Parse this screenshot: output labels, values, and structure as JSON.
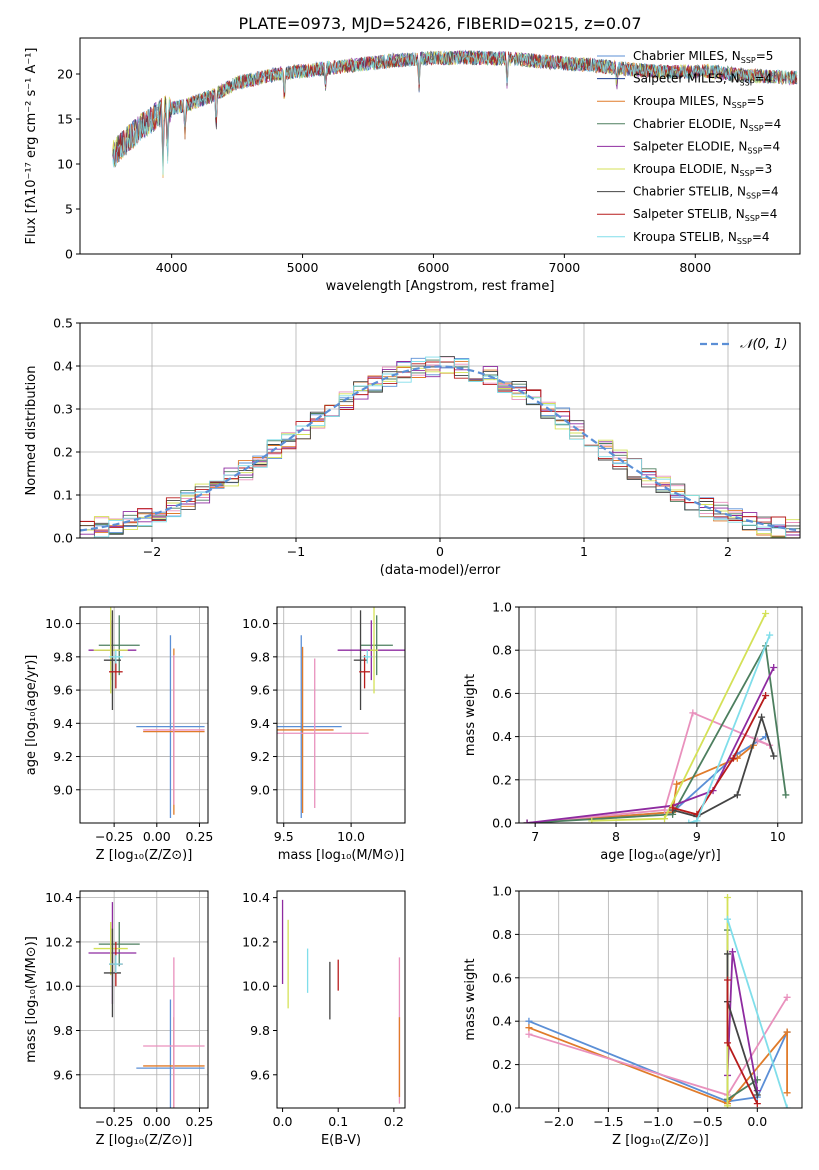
{
  "figure_title": "PLATE=0973, MJD=52426, FIBERID=0215, z=0.07",
  "chart_data": [
    {
      "id": "spectrum",
      "type": "line",
      "xlabel": "wavelength [Angstrom, rest frame]",
      "ylabel": "Flux [fλ10⁻¹⁷ erg cm⁻² s⁻¹ A⁻¹]",
      "xlim": [
        3300,
        8800
      ],
      "ylim": [
        0,
        24
      ],
      "xticks": [
        4000,
        5000,
        6000,
        7000,
        8000
      ],
      "yticks": [
        0,
        5,
        10,
        15,
        20
      ],
      "grid": false,
      "legend_position": "top-right",
      "series": [
        {
          "name": "Chabrier MILES, N_SSP=5",
          "color": "#5b8fd6"
        },
        {
          "name": "Salpeter MILES, N_SSP=4",
          "color": "#1f3f8f"
        },
        {
          "name": "Kroupa MILES, N_SSP=5",
          "color": "#e07b2a"
        },
        {
          "name": "Chabrier ELODIE, N_SSP=4",
          "color": "#4d7f5f"
        },
        {
          "name": "Salpeter ELODIE, N_SSP=4",
          "color": "#8e2ba0"
        },
        {
          "name": "Kroupa ELODIE, N_SSP=3",
          "color": "#d4e157"
        },
        {
          "name": "Chabrier STELIB, N_SSP=4",
          "color": "#444444"
        },
        {
          "name": "Salpeter STELIB, N_SSP=4",
          "color": "#b71c1c"
        },
        {
          "name": "Kroupa STELIB, N_SSP=4",
          "color": "#80deea"
        }
      ],
      "continuum": {
        "x": [
          3550,
          3650,
          3800,
          3950,
          4100,
          4300,
          4500,
          4800,
          5100,
          5400,
          5700,
          6000,
          6300,
          6600,
          6900,
          7200,
          7500,
          7800,
          8100,
          8400,
          8750
        ],
        "y": [
          11,
          12.5,
          14.5,
          16,
          16.5,
          17.5,
          19,
          20,
          20.5,
          21,
          21.5,
          21.8,
          21.8,
          21.7,
          21.3,
          21,
          20.5,
          20.2,
          20.3,
          19.8,
          19.6
        ]
      }
    },
    {
      "id": "residual-histogram",
      "type": "bar",
      "xlabel": "(data-model)/error",
      "ylabel": "Normed distribution",
      "xlim": [
        -2.5,
        2.5
      ],
      "ylim": [
        0,
        0.5
      ],
      "xticks": [
        -2,
        -1,
        0,
        1,
        2
      ],
      "yticks": [
        0.0,
        0.1,
        0.2,
        0.3,
        0.4,
        0.5
      ],
      "grid": true,
      "legend": "𝒩(0, 1)",
      "legend_position": "top-right",
      "reference_curve": "gaussian mean 0 sigma 1",
      "reference_color": "#5b8fd6"
    },
    {
      "id": "age-vs-Z",
      "type": "scatter",
      "xlabel": "Z [log₁₀(Z/Z⊙)]",
      "ylabel": "age  [log₁₀(age/yr)]",
      "xlim": [
        -0.45,
        0.3
      ],
      "ylim": [
        8.8,
        10.1
      ],
      "xticks": [
        -0.25,
        0.0,
        0.25
      ],
      "xticklabels": [
        "−0.25",
        "0.00",
        "0.25"
      ],
      "yticks": [
        9.0,
        9.2,
        9.4,
        9.6,
        9.8,
        10.0
      ],
      "grid": true,
      "points": [
        {
          "x": 0.08,
          "xerr": 0.2,
          "y": 9.38,
          "yerr": 0.55,
          "color": "#5b8fd6"
        },
        {
          "x": 0.1,
          "xerr": 0.18,
          "y": 9.35,
          "yerr": 0.5,
          "color": "#e07b2a"
        },
        {
          "x": 0.1,
          "xerr": 0.18,
          "y": 9.36,
          "yerr": 0.45,
          "color": "#e991bd"
        },
        {
          "x": -0.22,
          "xerr": 0.12,
          "y": 9.87,
          "yerr": 0.18,
          "color": "#4d7f5f"
        },
        {
          "x": -0.26,
          "xerr": 0.14,
          "y": 9.84,
          "yerr": 0.18,
          "color": "#8e2ba0"
        },
        {
          "x": -0.27,
          "xerr": 0.1,
          "y": 9.84,
          "yerr": 0.26,
          "color": "#d4e157"
        },
        {
          "x": -0.26,
          "xerr": 0.05,
          "y": 9.78,
          "yerr": 0.3,
          "color": "#444444"
        },
        {
          "x": -0.24,
          "xerr": 0.04,
          "y": 9.71,
          "yerr": 0.1,
          "color": "#b71c1c"
        },
        {
          "x": -0.24,
          "xerr": 0.04,
          "y": 9.8,
          "yerr": 0.04,
          "color": "#80deea"
        }
      ]
    },
    {
      "id": "age-vs-mass",
      "type": "scatter",
      "xlabel": "mass [log₁₀(M/M⊙)]",
      "xlim": [
        9.45,
        10.4
      ],
      "ylim": [
        8.8,
        10.1
      ],
      "xticks": [
        9.5,
        10.0
      ],
      "xticklabels": [
        "9.5",
        "10.0"
      ],
      "yticks": [
        9.0,
        9.2,
        9.4,
        9.6,
        9.8,
        10.0
      ],
      "grid": true,
      "points": [
        {
          "x": 9.63,
          "xerr": 0.3,
          "y": 9.38,
          "yerr": 0.55,
          "color": "#5b8fd6"
        },
        {
          "x": 9.64,
          "xerr": 0.23,
          "y": 9.36,
          "yerr": 0.5,
          "color": "#e07b2a"
        },
        {
          "x": 9.73,
          "xerr": 0.4,
          "y": 9.34,
          "yerr": 0.45,
          "color": "#e991bd"
        },
        {
          "x": 10.19,
          "xerr": 0.12,
          "y": 9.87,
          "yerr": 0.18,
          "color": "#4d7f5f"
        },
        {
          "x": 10.15,
          "xerr": 0.25,
          "y": 9.84,
          "yerr": 0.18,
          "color": "#8e2ba0"
        },
        {
          "x": 10.17,
          "xerr": 0.03,
          "y": 9.84,
          "yerr": 0.26,
          "color": "#d4e157"
        },
        {
          "x": 10.07,
          "xerr": 0.05,
          "y": 9.78,
          "yerr": 0.3,
          "color": "#444444"
        },
        {
          "x": 10.1,
          "xerr": 0.04,
          "y": 9.71,
          "yerr": 0.1,
          "color": "#b71c1c"
        },
        {
          "x": 10.12,
          "xerr": 0.03,
          "y": 9.8,
          "yerr": 0.04,
          "color": "#80deea"
        }
      ]
    },
    {
      "id": "massweight-vs-age",
      "type": "line",
      "xlabel": "age  [log₁₀(age/yr)]",
      "ylabel": "mass weight",
      "xlim": [
        6.8,
        10.3
      ],
      "ylim": [
        0,
        1
      ],
      "xticks": [
        7,
        8,
        9,
        10
      ],
      "yticks": [
        0.0,
        0.2,
        0.4,
        0.6,
        0.8,
        1.0
      ],
      "grid": true,
      "series": [
        {
          "color": "#5b8fd6",
          "x": [
            6.9,
            8.7,
            9.5,
            9.85
          ],
          "y": [
            0.0,
            0.05,
            0.32,
            0.4
          ]
        },
        {
          "color": "#e07b2a",
          "x": [
            6.9,
            8.7,
            8.75,
            9.5,
            9.7
          ],
          "y": [
            0.0,
            0.05,
            0.18,
            0.3,
            0.36
          ]
        },
        {
          "color": "#e991bd",
          "x": [
            6.9,
            8.6,
            8.95,
            9.9,
            9.75
          ],
          "y": [
            0.0,
            0.06,
            0.51,
            0.36,
            0.38
          ]
        },
        {
          "color": "#4d7f5f",
          "x": [
            6.9,
            8.7,
            9.85,
            10.1
          ],
          "y": [
            0.0,
            0.04,
            0.82,
            0.13
          ]
        },
        {
          "color": "#8e2ba0",
          "x": [
            6.9,
            8.7,
            9.2,
            9.95
          ],
          "y": [
            0.0,
            0.08,
            0.15,
            0.72
          ]
        },
        {
          "color": "#d4e157",
          "x": [
            7.7,
            8.6,
            9.85
          ],
          "y": [
            0.01,
            0.02,
            0.97
          ]
        },
        {
          "color": "#444444",
          "x": [
            8.7,
            9.0,
            9.5,
            9.8,
            9.95
          ],
          "y": [
            0.06,
            0.03,
            0.13,
            0.49,
            0.31
          ]
        },
        {
          "color": "#b71c1c",
          "x": [
            8.7,
            9.0,
            9.45,
            9.85
          ],
          "y": [
            0.07,
            0.04,
            0.3,
            0.59
          ]
        },
        {
          "color": "#80deea",
          "x": [
            8.9,
            9.0,
            9.9
          ],
          "y": [
            0.0,
            0.01,
            0.87
          ]
        }
      ]
    },
    {
      "id": "mass-vs-Z",
      "type": "scatter",
      "xlabel": "Z [log₁₀(Z/Z⊙)]",
      "ylabel": "mass [log₁₀(M/M⊙)]",
      "xlim": [
        -0.45,
        0.3
      ],
      "ylim": [
        9.45,
        10.43
      ],
      "xticks": [
        -0.25,
        0.0,
        0.25
      ],
      "xticklabels": [
        "−0.25",
        "0.00",
        "0.25"
      ],
      "yticks": [
        9.6,
        9.8,
        10.0,
        10.2,
        10.4
      ],
      "grid": true,
      "points": [
        {
          "x": 0.08,
          "xerr": 0.2,
          "y": 9.63,
          "yerr": 0.31,
          "color": "#5b8fd6"
        },
        {
          "x": 0.1,
          "xerr": 0.18,
          "y": 9.64,
          "yerr": 0.22,
          "color": "#e07b2a"
        },
        {
          "x": 0.1,
          "xerr": 0.18,
          "y": 9.73,
          "yerr": 0.4,
          "color": "#e991bd"
        },
        {
          "x": -0.22,
          "xerr": 0.12,
          "y": 10.19,
          "yerr": 0.1,
          "color": "#4d7f5f"
        },
        {
          "x": -0.26,
          "xerr": 0.14,
          "y": 10.15,
          "yerr": 0.23,
          "color": "#8e2ba0"
        },
        {
          "x": -0.27,
          "xerr": 0.1,
          "y": 10.17,
          "yerr": 0.12,
          "color": "#d4e157"
        },
        {
          "x": -0.26,
          "xerr": 0.05,
          "y": 10.06,
          "yerr": 0.2,
          "color": "#444444"
        },
        {
          "x": -0.24,
          "xerr": 0.04,
          "y": 10.1,
          "yerr": 0.1,
          "color": "#b71c1c"
        },
        {
          "x": -0.24,
          "xerr": 0.04,
          "y": 10.1,
          "yerr": 0.04,
          "color": "#80deea"
        }
      ]
    },
    {
      "id": "mass-vs-EBV",
      "type": "scatter",
      "xlabel": "E(B-V)",
      "xlim": [
        -0.01,
        0.22
      ],
      "ylim": [
        9.45,
        10.43
      ],
      "xticks": [
        0.0,
        0.1,
        0.2
      ],
      "xticklabels": [
        "0.0",
        "0.1",
        "0.2"
      ],
      "yticks": [
        9.6,
        9.8,
        10.0,
        10.2,
        10.4
      ],
      "grid": false,
      "points": [
        {
          "x": 0.0,
          "y": 10.2,
          "yerr": 0.19,
          "color": "#8e2ba0"
        },
        {
          "x": 0.01,
          "y": 10.1,
          "yerr": 0.2,
          "color": "#d4e157"
        },
        {
          "x": 0.045,
          "y": 10.07,
          "yerr": 0.1,
          "color": "#80deea"
        },
        {
          "x": 0.085,
          "y": 9.98,
          "yerr": 0.13,
          "color": "#444444"
        },
        {
          "x": 0.1,
          "y": 10.05,
          "yerr": 0.07,
          "color": "#b71c1c"
        },
        {
          "x": 0.21,
          "y": 9.8,
          "yerr": 0.33,
          "color": "#e991bd"
        },
        {
          "x": 0.21,
          "y": 9.68,
          "yerr": 0.18,
          "color": "#e07b2a"
        }
      ]
    },
    {
      "id": "massweight-vs-Z",
      "type": "line",
      "xlabel": "Z [log₁₀(Z/Z⊙)]",
      "ylabel": "mass weight",
      "xlim": [
        -2.4,
        0.45
      ],
      "ylim": [
        0,
        1
      ],
      "xticks": [
        -2.0,
        -1.5,
        -1.0,
        -0.5,
        0.0
      ],
      "xticklabels": [
        "−2.0",
        "−1.5",
        "−1.0",
        "−0.5",
        "0.0"
      ],
      "yticks": [
        0.0,
        0.2,
        0.4,
        0.6,
        0.8,
        1.0
      ],
      "grid": true,
      "series": [
        {
          "color": "#5b8fd6",
          "x": [
            -2.3,
            -0.3,
            0.0,
            0.3
          ],
          "y": [
            0.4,
            0.03,
            0.05,
            0.35
          ]
        },
        {
          "color": "#e07b2a",
          "x": [
            -2.3,
            -0.3,
            0.3,
            0.3
          ],
          "y": [
            0.37,
            0.02,
            0.35,
            0.07
          ]
        },
        {
          "color": "#e991bd",
          "x": [
            -2.3,
            -0.3,
            0.3
          ],
          "y": [
            0.34,
            0.06,
            0.51
          ]
        },
        {
          "color": "#4d7f5f",
          "x": [
            -0.3,
            -0.3,
            0.0
          ],
          "y": [
            0.82,
            0.04,
            0.13
          ]
        },
        {
          "color": "#8e2ba0",
          "x": [
            -0.3,
            -0.25,
            0.0
          ],
          "y": [
            0.15,
            0.72,
            0.08
          ]
        },
        {
          "color": "#d4e157",
          "x": [
            -0.3,
            -0.3
          ],
          "y": [
            0.97,
            0.01
          ]
        },
        {
          "color": "#444444",
          "x": [
            -0.3,
            -0.3,
            0.0
          ],
          "y": [
            0.71,
            0.49,
            0.06
          ]
        },
        {
          "color": "#b71c1c",
          "x": [
            -0.3,
            -0.3,
            0.0
          ],
          "y": [
            0.59,
            0.3,
            0.02
          ]
        },
        {
          "color": "#80deea",
          "x": [
            -0.3,
            0.3
          ],
          "y": [
            0.87,
            0.0
          ]
        }
      ]
    }
  ]
}
